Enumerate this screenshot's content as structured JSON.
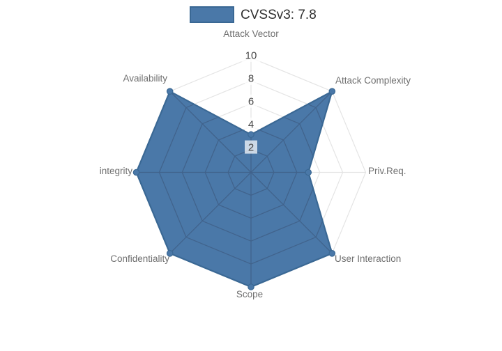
{
  "legend": {
    "label": "CVSSv3: 7.8"
  },
  "chart_data": {
    "type": "radar",
    "title": "",
    "legend_position": "top",
    "grid_shape": "polygon",
    "categories": [
      "Attack Vector",
      "Attack Complexity",
      "Priv.Req.",
      "User Interaction",
      "Scope",
      "Confidentiality",
      "integrity",
      "Availability"
    ],
    "series": [
      {
        "name": "CVSSv3: 7.8",
        "values": [
          3.3,
          10,
          5,
          10,
          10,
          10,
          10,
          10
        ],
        "fill_color": "#4a78a8",
        "line_color": "#3a6894"
      }
    ],
    "radial_ticks": [
      2,
      4,
      6,
      8,
      10
    ],
    "radial_range": [
      0,
      10
    ],
    "colors": {
      "grid_outer": "#e4e4e4",
      "grid_inner": "#41638c",
      "tick_text": "#474747",
      "tick_box": "rgba(255,255,255,0.72)",
      "axis_label": "#6f6f6f",
      "legend_text": "#303030",
      "background": "#ffffff"
    }
  }
}
